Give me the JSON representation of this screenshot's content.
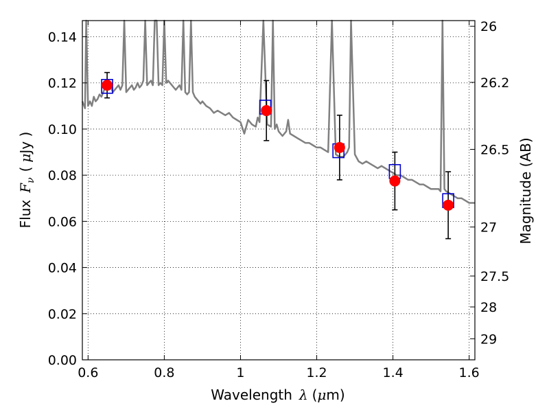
{
  "chart_data": {
    "type": "scatter",
    "xlabel_text": "Wavelength",
    "xlabel_symbol": "λ",
    "xlabel_unit_open": "(",
    "xlabel_unit_mu": "μ",
    "xlabel_unit_rest": "m)",
    "ylabel_text": "Flux",
    "ylabel_symbol": "F",
    "ylabel_sub": "ν",
    "ylabel_unit_open": "(",
    "ylabel_unit_mu": "μ",
    "ylabel_unit_rest": "Jy )",
    "y2label": "Magnitude (AB)",
    "xlim": [
      0.585,
      1.615
    ],
    "ylim": [
      0.0,
      0.147
    ],
    "x_ticks": [
      0.6,
      0.8,
      1.0,
      1.2,
      1.4,
      1.6
    ],
    "x_tick_labels": [
      "0.6",
      "0.8",
      "1",
      "1.2",
      "1.4",
      "1.6"
    ],
    "y_ticks": [
      0.0,
      0.02,
      0.04,
      0.06,
      0.08,
      0.1,
      0.12,
      0.14
    ],
    "y_tick_labels": [
      "0.00",
      "0.02",
      "0.04",
      "0.06",
      "0.08",
      "0.10",
      "0.12",
      "0.14"
    ],
    "mag_ticks": [
      26,
      26.2,
      26.5,
      27,
      27.5,
      28,
      29
    ],
    "mag_tick_labels": [
      "26",
      "26.2",
      "26.5",
      "27",
      "27.5",
      "28",
      "29"
    ],
    "grid": true,
    "colors": {
      "spectrum": "#808080",
      "model_box": "#0000cc",
      "observed": "#ff0000",
      "errorbar": "#000000"
    },
    "series": [
      {
        "kind": "line",
        "x": [
          0.585,
          0.592,
          0.595,
          0.6,
          0.605,
          0.61,
          0.615,
          0.62,
          0.625,
          0.63,
          0.635,
          0.64,
          0.645,
          0.65,
          0.655,
          0.66,
          0.665,
          0.67,
          0.675,
          0.68,
          0.685,
          0.69,
          0.695,
          0.7,
          0.705,
          0.71,
          0.715,
          0.72,
          0.725,
          0.73,
          0.735,
          0.74,
          0.745,
          0.75,
          0.755,
          0.76,
          0.765,
          0.77,
          0.775,
          0.78,
          0.785,
          0.79,
          0.795,
          0.8,
          0.805,
          0.81,
          0.815,
          0.82,
          0.825,
          0.83,
          0.835,
          0.84,
          0.845,
          0.85,
          0.855,
          0.86,
          0.865,
          0.87,
          0.875,
          0.88,
          0.885,
          0.89,
          0.895,
          0.9,
          0.91,
          0.92,
          0.93,
          0.94,
          0.95,
          0.96,
          0.97,
          0.98,
          0.99,
          1.0,
          1.01,
          1.02,
          1.03,
          1.04,
          1.045,
          1.05,
          1.06,
          1.07,
          1.08,
          1.085,
          1.09,
          1.095,
          1.1,
          1.11,
          1.12,
          1.125,
          1.13,
          1.14,
          1.15,
          1.16,
          1.17,
          1.18,
          1.19,
          1.2,
          1.21,
          1.22,
          1.23,
          1.24,
          1.25,
          1.26,
          1.27,
          1.275,
          1.28,
          1.285,
          1.29,
          1.3,
          1.31,
          1.32,
          1.33,
          1.34,
          1.35,
          1.36,
          1.37,
          1.38,
          1.39,
          1.4,
          1.41,
          1.42,
          1.43,
          1.44,
          1.45,
          1.46,
          1.47,
          1.48,
          1.49,
          1.5,
          1.51,
          1.52,
          1.525,
          1.53,
          1.535,
          1.54,
          1.55,
          1.56,
          1.57,
          1.58,
          1.59,
          1.6,
          1.615
        ],
        "y": [
          0.112,
          0.109,
          0.147,
          0.11,
          0.112,
          0.11,
          0.114,
          0.112,
          0.113,
          0.115,
          0.114,
          0.116,
          0.118,
          0.117,
          0.119,
          0.118,
          0.116,
          0.117,
          0.118,
          0.119,
          0.117,
          0.119,
          0.147,
          0.116,
          0.117,
          0.118,
          0.119,
          0.117,
          0.118,
          0.12,
          0.118,
          0.119,
          0.121,
          0.147,
          0.119,
          0.12,
          0.121,
          0.119,
          0.147,
          0.147,
          0.119,
          0.12,
          0.119,
          0.147,
          0.12,
          0.121,
          0.12,
          0.119,
          0.118,
          0.117,
          0.118,
          0.119,
          0.117,
          0.147,
          0.116,
          0.115,
          0.116,
          0.147,
          0.116,
          0.114,
          0.113,
          0.112,
          0.111,
          0.112,
          0.11,
          0.109,
          0.107,
          0.108,
          0.107,
          0.106,
          0.107,
          0.105,
          0.104,
          0.103,
          0.098,
          0.104,
          0.102,
          0.101,
          0.105,
          0.103,
          0.147,
          0.102,
          0.101,
          0.147,
          0.1,
          0.102,
          0.099,
          0.097,
          0.099,
          0.104,
          0.098,
          0.097,
          0.096,
          0.095,
          0.094,
          0.094,
          0.093,
          0.092,
          0.092,
          0.091,
          0.09,
          0.147,
          0.089,
          0.088,
          0.088,
          0.089,
          0.09,
          0.092,
          0.147,
          0.089,
          0.086,
          0.085,
          0.086,
          0.085,
          0.084,
          0.083,
          0.084,
          0.083,
          0.082,
          0.081,
          0.08,
          0.08,
          0.079,
          0.078,
          0.078,
          0.077,
          0.076,
          0.076,
          0.075,
          0.074,
          0.074,
          0.074,
          0.073,
          0.147,
          0.074,
          0.073,
          0.072,
          0.071,
          0.07,
          0.07,
          0.069,
          0.068,
          0.068
        ]
      },
      {
        "kind": "model-boxes",
        "x": [
          0.65,
          1.065,
          1.257,
          1.405,
          1.545
        ],
        "y": [
          0.1185,
          0.1095,
          0.0906,
          0.0816,
          0.069
        ]
      },
      {
        "kind": "observed-points",
        "x": [
          0.65,
          1.068,
          1.26,
          1.405,
          1.545
        ],
        "y": [
          0.119,
          0.108,
          0.092,
          0.0775,
          0.067
        ],
        "err": [
          0.0055,
          0.013,
          0.014,
          0.0125,
          0.0145
        ]
      }
    ]
  }
}
